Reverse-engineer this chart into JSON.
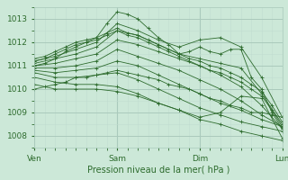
{
  "xlabel": "Pression niveau de la mer( hPa )",
  "bg_color": "#cce8d8",
  "line_color": "#2d6b2d",
  "grid_major_color": "#aacabc",
  "grid_minor_color": "#c0ddd0",
  "xlim": [
    0,
    72
  ],
  "ylim": [
    1007.5,
    1013.5
  ],
  "yticks": [
    1008,
    1009,
    1010,
    1011,
    1012,
    1013
  ],
  "xtick_positions": [
    0,
    24,
    48,
    72
  ],
  "xtick_labels": [
    "Ven",
    "Sam",
    "Dim",
    "Lun"
  ],
  "lines": [
    [
      [
        0,
        3,
        6,
        9,
        12,
        15,
        18,
        21,
        24,
        27,
        30,
        33,
        36,
        39,
        42,
        45,
        48,
        51,
        54,
        57,
        60,
        63,
        66,
        69,
        72
      ],
      [
        1011.0,
        1011.1,
        1011.3,
        1011.6,
        1011.8,
        1012.0,
        1012.2,
        1012.8,
        1013.3,
        1013.2,
        1013.0,
        1012.6,
        1012.2,
        1011.9,
        1011.5,
        1011.6,
        1011.8,
        1011.6,
        1011.5,
        1011.7,
        1011.7,
        1010.5,
        1010.0,
        1009.0,
        1008.3
      ]
    ],
    [
      [
        0,
        6,
        12,
        18,
        24,
        30,
        36,
        42,
        48,
        54,
        60,
        66,
        72
      ],
      [
        1011.2,
        1011.4,
        1011.7,
        1012.0,
        1012.8,
        1012.5,
        1012.1,
        1011.8,
        1012.1,
        1012.2,
        1011.8,
        1010.5,
        1008.8
      ]
    ],
    [
      [
        0,
        6,
        12,
        18,
        24,
        30,
        36,
        42,
        48,
        54,
        60,
        66,
        72
      ],
      [
        1011.1,
        1011.3,
        1011.5,
        1011.8,
        1012.5,
        1012.3,
        1011.9,
        1011.5,
        1011.3,
        1011.1,
        1010.9,
        1009.8,
        1008.5
      ]
    ],
    [
      [
        0,
        6,
        12,
        18,
        24,
        30,
        36,
        42,
        48,
        54,
        60,
        66,
        72
      ],
      [
        1011.0,
        1011.1,
        1011.3,
        1011.5,
        1012.1,
        1011.9,
        1011.6,
        1011.3,
        1011.0,
        1010.6,
        1010.1,
        1009.3,
        1008.3
      ]
    ],
    [
      [
        0,
        6,
        12,
        18,
        24,
        30,
        36,
        42,
        48,
        54,
        60,
        66,
        72
      ],
      [
        1010.9,
        1010.9,
        1011.0,
        1011.2,
        1011.7,
        1011.4,
        1011.1,
        1010.8,
        1010.4,
        1010.0,
        1009.5,
        1008.9,
        1008.4
      ]
    ],
    [
      [
        0,
        6,
        12,
        18,
        24,
        30,
        36,
        42,
        48,
        54,
        60,
        66,
        72
      ],
      [
        1010.8,
        1010.7,
        1010.8,
        1010.9,
        1011.2,
        1011.0,
        1010.6,
        1010.2,
        1009.8,
        1009.4,
        1009.1,
        1008.7,
        1008.4
      ]
    ],
    [
      [
        0,
        6,
        12,
        18,
        24,
        30,
        36,
        42,
        48,
        54,
        60,
        66,
        72
      ],
      [
        1010.7,
        1010.5,
        1010.5,
        1010.6,
        1010.7,
        1010.4,
        1010.0,
        1009.6,
        1009.2,
        1008.9,
        1008.6,
        1008.4,
        1008.2
      ]
    ],
    [
      [
        0,
        6,
        12,
        18,
        24,
        30,
        36,
        42,
        48,
        54,
        60,
        66,
        72
      ],
      [
        1010.5,
        1010.3,
        1010.2,
        1010.2,
        1010.1,
        1009.8,
        1009.4,
        1009.1,
        1008.7,
        1008.5,
        1008.2,
        1008.0,
        1007.8
      ]
    ],
    [
      [
        0,
        6,
        12,
        18,
        24,
        30,
        36,
        42,
        48,
        54,
        60,
        66,
        72
      ],
      [
        1010.2,
        1010.0,
        1010.0,
        1010.0,
        1009.9,
        1009.7,
        1009.4,
        1009.1,
        1008.8,
        1009.0,
        1009.7,
        1009.6,
        1007.9
      ]
    ],
    [
      [
        0,
        3,
        6,
        9,
        12,
        15,
        18,
        21,
        24,
        27,
        30,
        33,
        36,
        39,
        42,
        45,
        48,
        51,
        54,
        57,
        60,
        63,
        66,
        69,
        72
      ],
      [
        1011.3,
        1011.4,
        1011.6,
        1011.8,
        1012.0,
        1012.1,
        1012.2,
        1012.4,
        1012.6,
        1012.4,
        1012.3,
        1012.1,
        1011.9,
        1011.7,
        1011.5,
        1011.3,
        1011.2,
        1011.0,
        1010.9,
        1010.7,
        1010.5,
        1010.2,
        1009.9,
        1009.3,
        1008.6
      ]
    ],
    [
      [
        0,
        3,
        6,
        9,
        12,
        15,
        18,
        21,
        24,
        27,
        30,
        33,
        36,
        39,
        42,
        45,
        48,
        51,
        54,
        57,
        60,
        63,
        66,
        69,
        72
      ],
      [
        1011.2,
        1011.3,
        1011.5,
        1011.7,
        1011.9,
        1012.0,
        1012.1,
        1012.3,
        1012.5,
        1012.3,
        1012.2,
        1012.0,
        1011.8,
        1011.6,
        1011.4,
        1011.2,
        1011.0,
        1010.8,
        1010.7,
        1010.5,
        1010.3,
        1010.0,
        1009.7,
        1009.1,
        1008.4
      ]
    ],
    [
      [
        0,
        3,
        6,
        9,
        12,
        15,
        18,
        21,
        24,
        27,
        30,
        33,
        36,
        39,
        42,
        45,
        48,
        51,
        54,
        57,
        60,
        63,
        66,
        69,
        72
      ],
      [
        1010.0,
        1010.1,
        1010.2,
        1010.3,
        1010.5,
        1010.5,
        1010.6,
        1010.7,
        1010.8,
        1010.7,
        1010.6,
        1010.5,
        1010.4,
        1010.2,
        1010.1,
        1010.0,
        1009.8,
        1009.6,
        1009.5,
        1009.3,
        1009.2,
        1009.0,
        1009.0,
        1008.9,
        1008.8
      ]
    ]
  ]
}
